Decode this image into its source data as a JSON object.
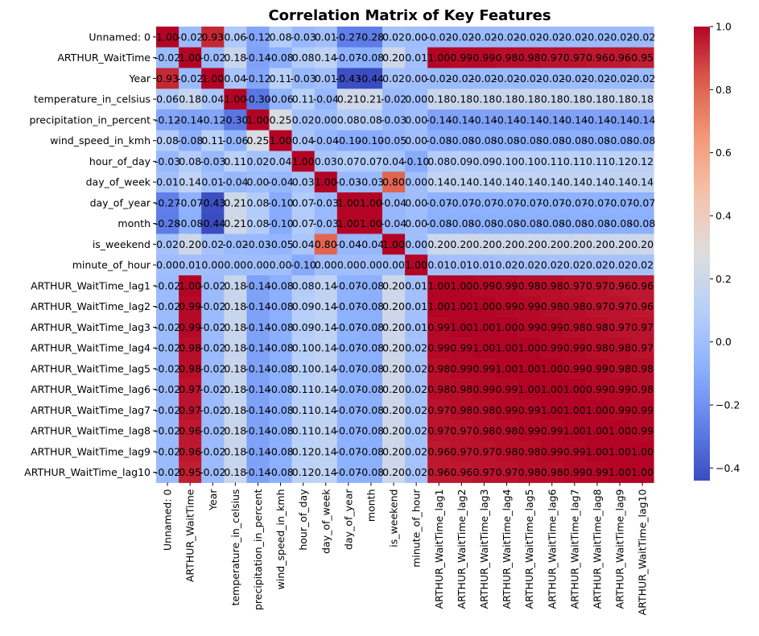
{
  "chart_data": {
    "type": "heatmap",
    "title": "Correlation Matrix of Key Features",
    "colormap": "coolwarm",
    "vmin": -0.44,
    "vmax": 1.0,
    "labels": [
      "Unnamed: 0",
      "ARTHUR_WaitTime",
      "Year",
      "temperature_in_celsius",
      "precipitation_in_percent",
      "wind_speed_in_kmh",
      "hour_of_day",
      "day_of_week",
      "day_of_year",
      "month",
      "is_weekend",
      "minute_of_hour",
      "ARTHUR_WaitTime_lag1",
      "ARTHUR_WaitTime_lag2",
      "ARTHUR_WaitTime_lag3",
      "ARTHUR_WaitTime_lag4",
      "ARTHUR_WaitTime_lag5",
      "ARTHUR_WaitTime_lag6",
      "ARTHUR_WaitTime_lag7",
      "ARTHUR_WaitTime_lag8",
      "ARTHUR_WaitTime_lag9",
      "ARTHUR_WaitTime_lag10"
    ],
    "matrix": [
      [
        1.0,
        -0.02,
        0.93,
        0.06,
        -0.12,
        0.08,
        -0.03,
        0.01,
        -0.27,
        -0.28,
        0.02,
        0.0,
        -0.02,
        -0.02,
        -0.02,
        -0.02,
        -0.02,
        -0.02,
        -0.02,
        -0.02,
        -0.02,
        -0.02
      ],
      [
        -0.02,
        1.0,
        -0.02,
        0.18,
        -0.14,
        -0.08,
        0.08,
        0.14,
        -0.07,
        -0.08,
        0.2,
        0.01,
        1.0,
        0.99,
        0.99,
        0.98,
        0.98,
        0.97,
        0.97,
        0.96,
        0.96,
        0.95
      ],
      [
        0.93,
        -0.02,
        1.0,
        0.04,
        -0.12,
        0.11,
        -0.03,
        0.01,
        -0.43,
        -0.44,
        0.02,
        0.0,
        -0.02,
        -0.02,
        -0.02,
        -0.02,
        -0.02,
        -0.02,
        -0.02,
        -0.02,
        -0.02,
        -0.02
      ],
      [
        0.06,
        0.18,
        0.04,
        1.0,
        -0.3,
        -0.06,
        0.11,
        -0.04,
        0.21,
        0.21,
        -0.02,
        -0.0,
        0.18,
        0.18,
        0.18,
        0.18,
        0.18,
        0.18,
        0.18,
        0.18,
        0.18,
        0.18
      ],
      [
        -0.12,
        -0.14,
        -0.12,
        -0.3,
        1.0,
        0.25,
        0.02,
        -0.0,
        0.08,
        0.08,
        -0.03,
        -0.0,
        -0.14,
        -0.14,
        -0.14,
        -0.14,
        -0.14,
        -0.14,
        -0.14,
        -0.14,
        -0.14,
        -0.14
      ],
      [
        0.08,
        -0.08,
        0.11,
        -0.06,
        0.25,
        1.0,
        0.04,
        -0.04,
        -0.1,
        -0.1,
        -0.05,
        -0.0,
        -0.08,
        -0.08,
        -0.08,
        -0.08,
        -0.08,
        -0.08,
        -0.08,
        -0.08,
        -0.08,
        -0.08
      ],
      [
        -0.03,
        0.08,
        -0.03,
        0.11,
        0.02,
        0.04,
        1.0,
        0.03,
        0.07,
        0.07,
        0.04,
        -0.1,
        0.08,
        0.09,
        0.09,
        0.1,
        0.1,
        0.11,
        0.11,
        0.11,
        0.12,
        0.12
      ],
      [
        0.01,
        0.14,
        0.01,
        -0.04,
        -0.0,
        -0.04,
        0.03,
        1.0,
        -0.03,
        -0.03,
        0.8,
        0.0,
        0.14,
        0.14,
        0.14,
        0.14,
        0.14,
        0.14,
        0.14,
        0.14,
        0.14,
        0.14
      ],
      [
        -0.27,
        -0.07,
        -0.43,
        0.21,
        0.08,
        -0.1,
        0.07,
        -0.03,
        1.0,
        1.0,
        -0.04,
        -0.0,
        -0.07,
        -0.07,
        -0.07,
        -0.07,
        -0.07,
        -0.07,
        -0.07,
        -0.07,
        -0.07,
        -0.07
      ],
      [
        -0.28,
        -0.08,
        -0.44,
        0.21,
        0.08,
        -0.1,
        0.07,
        -0.03,
        1.0,
        1.0,
        -0.04,
        -0.0,
        -0.08,
        -0.08,
        -0.08,
        -0.08,
        -0.08,
        -0.08,
        -0.08,
        -0.08,
        -0.08,
        -0.08
      ],
      [
        0.02,
        0.2,
        0.02,
        -0.02,
        -0.03,
        -0.05,
        0.04,
        0.8,
        -0.04,
        -0.04,
        1.0,
        0.0,
        0.2,
        0.2,
        0.2,
        0.2,
        0.2,
        0.2,
        0.2,
        0.2,
        0.2,
        0.2
      ],
      [
        0.0,
        0.01,
        0.0,
        -0.0,
        -0.0,
        -0.0,
        -0.1,
        0.0,
        -0.0,
        -0.0,
        0.0,
        1.0,
        0.01,
        0.01,
        0.01,
        0.02,
        0.02,
        0.02,
        0.02,
        0.02,
        0.02,
        0.02
      ],
      [
        -0.02,
        1.0,
        -0.02,
        0.18,
        -0.14,
        -0.08,
        0.08,
        0.14,
        -0.07,
        -0.08,
        0.2,
        0.01,
        1.0,
        1.0,
        0.99,
        0.99,
        0.98,
        0.98,
        0.97,
        0.97,
        0.96,
        0.96
      ],
      [
        -0.02,
        0.99,
        -0.02,
        0.18,
        -0.14,
        -0.08,
        0.09,
        0.14,
        -0.07,
        -0.08,
        0.2,
        0.01,
        1.0,
        1.0,
        1.0,
        0.99,
        0.99,
        0.98,
        0.98,
        0.97,
        0.97,
        0.96
      ],
      [
        -0.02,
        0.99,
        -0.02,
        0.18,
        -0.14,
        -0.08,
        0.09,
        0.14,
        -0.07,
        -0.08,
        0.2,
        0.01,
        0.99,
        1.0,
        1.0,
        1.0,
        0.99,
        0.99,
        0.98,
        0.98,
        0.97,
        0.97
      ],
      [
        -0.02,
        0.98,
        -0.02,
        0.18,
        -0.14,
        -0.08,
        0.1,
        0.14,
        -0.07,
        -0.08,
        0.2,
        0.02,
        0.99,
        0.99,
        1.0,
        1.0,
        1.0,
        0.99,
        0.99,
        0.98,
        0.98,
        0.97
      ],
      [
        -0.02,
        0.98,
        -0.02,
        0.18,
        -0.14,
        -0.08,
        0.1,
        0.14,
        -0.07,
        -0.08,
        0.2,
        0.02,
        0.98,
        0.99,
        0.99,
        1.0,
        1.0,
        1.0,
        0.99,
        0.99,
        0.98,
        0.98
      ],
      [
        -0.02,
        0.97,
        -0.02,
        0.18,
        -0.14,
        -0.08,
        0.11,
        0.14,
        -0.07,
        -0.08,
        0.2,
        0.02,
        0.98,
        0.98,
        0.99,
        0.99,
        1.0,
        1.0,
        1.0,
        0.99,
        0.99,
        0.98
      ],
      [
        -0.02,
        0.97,
        -0.02,
        0.18,
        -0.14,
        -0.08,
        0.11,
        0.14,
        -0.07,
        -0.08,
        0.2,
        0.02,
        0.97,
        0.98,
        0.98,
        0.99,
        0.99,
        1.0,
        1.0,
        1.0,
        0.99,
        0.99
      ],
      [
        -0.02,
        0.96,
        -0.02,
        0.18,
        -0.14,
        -0.08,
        0.11,
        0.14,
        -0.07,
        -0.08,
        0.2,
        0.02,
        0.97,
        0.97,
        0.98,
        0.98,
        0.99,
        0.99,
        1.0,
        1.0,
        1.0,
        0.99
      ],
      [
        -0.02,
        0.96,
        -0.02,
        0.18,
        -0.14,
        -0.08,
        0.12,
        0.14,
        -0.07,
        -0.08,
        0.2,
        0.02,
        0.96,
        0.97,
        0.97,
        0.98,
        0.98,
        0.99,
        0.99,
        1.0,
        1.0,
        1.0
      ],
      [
        -0.02,
        0.95,
        -0.02,
        0.18,
        -0.14,
        -0.08,
        0.12,
        0.14,
        -0.07,
        -0.08,
        0.2,
        0.02,
        0.96,
        0.96,
        0.97,
        0.97,
        0.98,
        0.98,
        0.99,
        0.99,
        1.0,
        1.0
      ]
    ],
    "annotation_format": "0.00",
    "colorbar": {
      "ticks": [
        -0.4,
        -0.2,
        0.0,
        0.2,
        0.4,
        0.6,
        0.8,
        1.0
      ],
      "tick_labels": [
        "−0.4",
        "−0.2",
        "0.0",
        "0.2",
        "0.4",
        "0.6",
        "0.8",
        "1.0"
      ]
    },
    "grid": false,
    "legend": "colorbar-right"
  }
}
